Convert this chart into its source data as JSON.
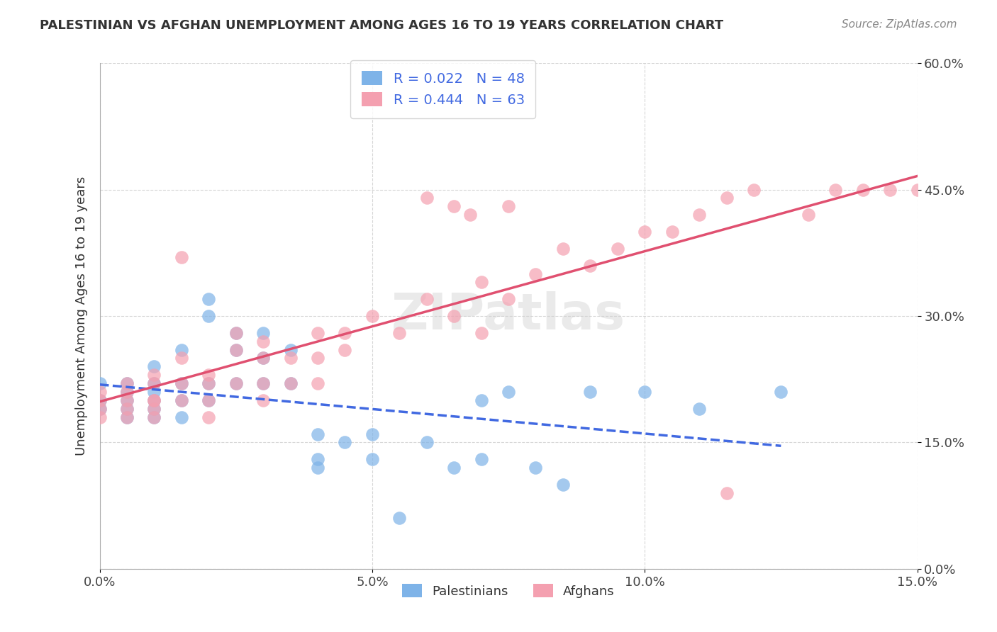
{
  "title": "PALESTINIAN VS AFGHAN UNEMPLOYMENT AMONG AGES 16 TO 19 YEARS CORRELATION CHART",
  "source": "Source: ZipAtlas.com",
  "ylabel": "Unemployment Among Ages 16 to 19 years",
  "xlim": [
    0.0,
    0.15
  ],
  "ylim": [
    0.0,
    0.6
  ],
  "xticks": [
    0.0,
    0.05,
    0.1,
    0.15
  ],
  "yticks": [
    0.0,
    0.15,
    0.3,
    0.45,
    0.6
  ],
  "xtick_labels": [
    "0.0%",
    "5.0%",
    "10.0%",
    "15.0%"
  ],
  "ytick_labels": [
    "0.0%",
    "15.0%",
    "30.0%",
    "45.0%",
    "60.0%"
  ],
  "legend_R1": "R = 0.022",
  "legend_N1": "N = 48",
  "legend_R2": "R = 0.444",
  "legend_N2": "N = 63",
  "color_palestinian": "#7EB3E8",
  "color_afghan": "#F4A0B0",
  "line_color_palestinian": "#4169E1",
  "line_color_afghan": "#E05070",
  "watermark": "ZIPatlas",
  "background_color": "#FFFFFF",
  "palestinians_x": [
    0.0,
    0.0,
    0.0,
    0.005,
    0.005,
    0.005,
    0.005,
    0.005,
    0.01,
    0.01,
    0.01,
    0.01,
    0.01,
    0.01,
    0.015,
    0.015,
    0.015,
    0.015,
    0.02,
    0.02,
    0.02,
    0.02,
    0.025,
    0.025,
    0.025,
    0.03,
    0.03,
    0.03,
    0.035,
    0.035,
    0.04,
    0.04,
    0.04,
    0.045,
    0.05,
    0.05,
    0.055,
    0.06,
    0.065,
    0.07,
    0.07,
    0.075,
    0.08,
    0.085,
    0.09,
    0.1,
    0.11,
    0.125
  ],
  "palestinians_y": [
    0.2,
    0.22,
    0.19,
    0.2,
    0.22,
    0.18,
    0.19,
    0.21,
    0.2,
    0.22,
    0.19,
    0.18,
    0.24,
    0.21,
    0.2,
    0.22,
    0.18,
    0.26,
    0.3,
    0.32,
    0.2,
    0.22,
    0.28,
    0.26,
    0.22,
    0.25,
    0.28,
    0.22,
    0.26,
    0.22,
    0.16,
    0.13,
    0.12,
    0.15,
    0.16,
    0.13,
    0.06,
    0.15,
    0.12,
    0.2,
    0.13,
    0.21,
    0.12,
    0.1,
    0.21,
    0.21,
    0.19,
    0.21
  ],
  "afghans_x": [
    0.0,
    0.0,
    0.0,
    0.0,
    0.005,
    0.005,
    0.005,
    0.005,
    0.005,
    0.01,
    0.01,
    0.01,
    0.01,
    0.01,
    0.01,
    0.015,
    0.015,
    0.015,
    0.015,
    0.02,
    0.02,
    0.02,
    0.02,
    0.025,
    0.025,
    0.025,
    0.03,
    0.03,
    0.03,
    0.03,
    0.035,
    0.035,
    0.04,
    0.04,
    0.04,
    0.045,
    0.045,
    0.05,
    0.055,
    0.06,
    0.065,
    0.07,
    0.07,
    0.075,
    0.08,
    0.085,
    0.09,
    0.095,
    0.1,
    0.105,
    0.11,
    0.115,
    0.12,
    0.13,
    0.135,
    0.14,
    0.145,
    0.15,
    0.115,
    0.06,
    0.065,
    0.068,
    0.075
  ],
  "afghans_y": [
    0.2,
    0.19,
    0.21,
    0.18,
    0.2,
    0.22,
    0.19,
    0.18,
    0.21,
    0.2,
    0.22,
    0.19,
    0.23,
    0.18,
    0.2,
    0.25,
    0.22,
    0.37,
    0.2,
    0.18,
    0.2,
    0.23,
    0.22,
    0.28,
    0.26,
    0.22,
    0.25,
    0.27,
    0.22,
    0.2,
    0.25,
    0.22,
    0.25,
    0.28,
    0.22,
    0.28,
    0.26,
    0.3,
    0.28,
    0.32,
    0.3,
    0.34,
    0.28,
    0.32,
    0.35,
    0.38,
    0.36,
    0.38,
    0.4,
    0.4,
    0.42,
    0.44,
    0.45,
    0.42,
    0.45,
    0.45,
    0.45,
    0.45,
    0.09,
    0.44,
    0.43,
    0.42,
    0.43
  ]
}
